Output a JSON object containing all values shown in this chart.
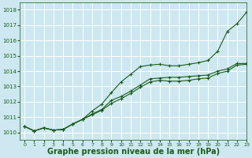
{
  "bg_color": "#cde8f0",
  "grid_color": "#ffffff",
  "line_color": "#1a5c1a",
  "xlabel": "Graphe pression niveau de la mer (hPa)",
  "xlabel_fontsize": 7,
  "xlim": [
    -0.5,
    23
  ],
  "ylim": [
    1009.5,
    1018.5
  ],
  "yticks": [
    1010,
    1011,
    1012,
    1013,
    1014,
    1015,
    1016,
    1017,
    1018
  ],
  "xticks": [
    0,
    1,
    2,
    3,
    4,
    5,
    6,
    7,
    8,
    9,
    10,
    11,
    12,
    13,
    14,
    15,
    16,
    17,
    18,
    19,
    20,
    21,
    22,
    23
  ],
  "series": [
    [
      1010.4,
      1010.1,
      1010.3,
      1010.15,
      1010.2,
      1010.55,
      1010.85,
      1011.2,
      1011.5,
      1012.1,
      1012.35,
      1012.7,
      1013.1,
      1013.5,
      1013.55,
      1013.6,
      1013.6,
      1013.65,
      1013.7,
      1013.75,
      1014.0,
      1014.15,
      1014.5,
      1014.5
    ],
    [
      1010.4,
      1010.1,
      1010.3,
      1010.15,
      1010.2,
      1010.55,
      1010.85,
      1011.15,
      1011.45,
      1011.9,
      1012.2,
      1012.55,
      1012.95,
      1013.3,
      1013.4,
      1013.35,
      1013.35,
      1013.4,
      1013.5,
      1013.55,
      1013.85,
      1014.0,
      1014.4,
      1014.45
    ],
    [
      1010.4,
      1010.1,
      1010.3,
      1010.15,
      1010.2,
      1010.55,
      1010.85,
      1011.4,
      1011.85,
      1012.6,
      1013.3,
      1013.8,
      1014.3,
      1014.4,
      1014.45,
      1014.35,
      1014.35,
      1014.45,
      1014.55,
      1014.7,
      1015.3,
      1016.6,
      1017.1,
      1017.85
    ]
  ]
}
